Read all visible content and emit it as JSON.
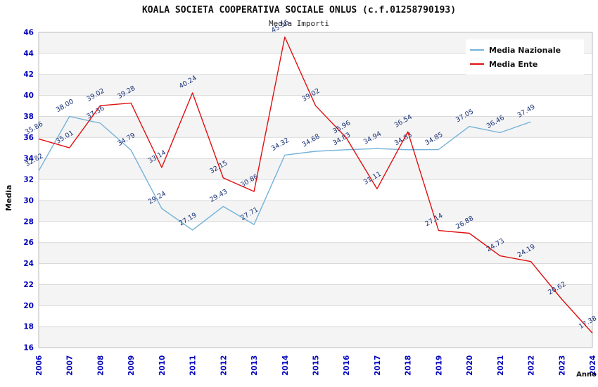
{
  "header": {
    "title": "KOALA SOCIETA COOPERATIVA SOCIALE ONLUS (c.f.01258790193)",
    "subtitle": "Media Importi"
  },
  "axis": {
    "y_label": "Media",
    "x_label": "Anno"
  },
  "chart_data": {
    "type": "line",
    "title": "KOALA SOCIETA COOPERATIVA SOCIALE ONLUS (c.f.01258790193)",
    "subtitle": "Media Importi",
    "xlabel": "Anno",
    "ylabel": "Media",
    "x": [
      "2006",
      "2007",
      "2008",
      "2009",
      "2010",
      "2011",
      "2012",
      "2013",
      "2014",
      "2015",
      "2016",
      "2017",
      "2018",
      "2019",
      "2020",
      "2021",
      "2022",
      "2023",
      "2024"
    ],
    "ylim": [
      16,
      46
    ],
    "ytick_step": 2,
    "grid": true,
    "legend_position": "top-right",
    "tick_color": "#0000bb",
    "label_color": "#1a3278",
    "series": [
      {
        "name": "Media Nazionale",
        "color": "#74b2d8",
        "values": [
          32.82,
          38.0,
          37.36,
          34.79,
          29.24,
          27.19,
          29.43,
          27.71,
          34.32,
          34.68,
          34.83,
          34.94,
          34.83,
          34.85,
          37.05,
          36.46,
          37.49,
          null,
          null
        ]
      },
      {
        "name": "Media Ente",
        "color": "#e01010",
        "values": [
          35.86,
          35.01,
          39.02,
          39.28,
          33.14,
          40.24,
          32.15,
          30.86,
          45.56,
          39.02,
          35.96,
          31.11,
          36.54,
          27.14,
          26.88,
          24.73,
          24.19,
          20.62,
          17.38
        ]
      }
    ]
  }
}
